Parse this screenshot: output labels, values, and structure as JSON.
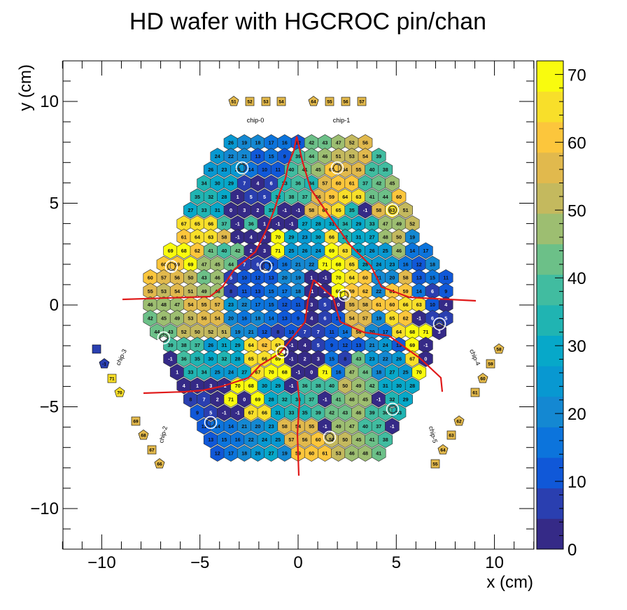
{
  "chart_data": {
    "type": "heatmap",
    "title": "HD wafer with HGCROC pin/chan",
    "xlabel": "x (cm)",
    "ylabel": "y (cm)",
    "xlim": [
      -12,
      12
    ],
    "ylim": [
      -12,
      12
    ],
    "x_ticks": [
      -10,
      -5,
      0,
      5,
      10
    ],
    "y_ticks": [
      -10,
      -5,
      0,
      5,
      10
    ],
    "z_range": [
      0,
      72
    ],
    "z_ticks": [
      0,
      10,
      20,
      30,
      40,
      50,
      60,
      70
    ],
    "palette": [
      "#352a87",
      "#2a3fb0",
      "#1058d8",
      "#0c74dc",
      "#1488d2",
      "#0898d1",
      "#07a8c9",
      "#20b4b2",
      "#41bca0",
      "#6cc088",
      "#9dbe71",
      "#c4b95e",
      "#e1b94d",
      "#fcc63c",
      "#f8df2a",
      "#f9fb0e"
    ],
    "note_chips": [
      "chip-0",
      "chip-1",
      "chip-2",
      "chip-3",
      "chip-4",
      "chip-5"
    ],
    "grid_rows": [
      [
        26,
        19,
        18,
        17,
        16,
        12,
        42,
        43,
        47,
        52,
        56
      ],
      [
        24,
        22,
        21,
        13,
        15,
        9,
        39,
        44,
        46,
        51,
        53,
        54,
        39
      ],
      [
        26,
        23,
        25,
        14,
        10,
        11,
        40,
        41,
        45,
        60,
        54,
        55,
        40,
        38
      ],
      [
        34,
        30,
        29,
        7,
        4,
        6,
        33,
        36,
        34,
        57,
        60,
        61,
        37,
        42,
        45
      ],
      [
        35,
        32,
        28,
        1,
        5,
        5,
        32,
        38,
        37,
        56,
        59,
        64,
        63,
        41,
        44,
        60
      ],
      [
        27,
        33,
        31,
        0,
        3,
        2,
        35,
        -1,
        -1,
        58,
        62,
        65,
        35,
        -1,
        58,
        63,
        51
      ],
      [
        67,
        65,
        66,
        37,
        -1,
        36,
        1,
        -1,
        -1,
        27,
        28,
        31,
        34,
        29,
        33,
        47,
        49,
        52
      ],
      [
        61,
        64,
        63,
        58,
        -1,
        4,
        0,
        70,
        29,
        23,
        30,
        66,
        32,
        31,
        27,
        48,
        50,
        19
      ],
      [
        69,
        68,
        62,
        41,
        40,
        42,
        2,
        3,
        71,
        25,
        26,
        24,
        69,
        63,
        30,
        26,
        25,
        46,
        14,
        17
      ],
      [
        60,
        59,
        69,
        47,
        45,
        44,
        7,
        6,
        10,
        16,
        21,
        22,
        71,
        68,
        65,
        28,
        24,
        23,
        16,
        12,
        18
      ],
      [
        60,
        57,
        56,
        50,
        43,
        46,
        5,
        10,
        12,
        13,
        20,
        19,
        1,
        -1,
        70,
        64,
        60,
        21,
        20,
        58,
        13,
        15,
        11
      ],
      [
        55,
        53,
        54,
        51,
        49,
        48,
        8,
        11,
        13,
        15,
        17,
        18,
        -1,
        2,
        69,
        59,
        62,
        22,
        61,
        59,
        14,
        6,
        9
      ],
      [
        46,
        48,
        47,
        54,
        55,
        57,
        23,
        22,
        17,
        15,
        12,
        11,
        3,
        5,
        0,
        55,
        58,
        61,
        60,
        66,
        63,
        10,
        4
      ],
      [
        42,
        45,
        49,
        53,
        56,
        54,
        20,
        16,
        18,
        14,
        13,
        9,
        4,
        6,
        10,
        54,
        57,
        19,
        65,
        62,
        -1,
        6,
        5
      ],
      [
        44,
        43,
        52,
        50,
        52,
        51,
        19,
        21,
        12,
        8,
        10,
        7,
        7,
        11,
        14,
        56,
        20,
        17,
        64,
        68,
        71,
        3
      ],
      [
        39,
        38,
        37,
        26,
        31,
        29,
        64,
        62,
        63,
        -1,
        4,
        5,
        9,
        12,
        13,
        21,
        24,
        13,
        69,
        -1
      ],
      [
        -1,
        36,
        35,
        30,
        32,
        28,
        65,
        66,
        69,
        -1,
        2,
        3,
        15,
        8,
        43,
        23,
        22,
        26,
        67,
        0
      ],
      [
        1,
        33,
        34,
        25,
        24,
        27,
        67,
        70,
        68,
        -1,
        0,
        71,
        16,
        47,
        44,
        18,
        27,
        25,
        70
      ],
      [
        4,
        1,
        3,
        -1,
        70,
        68,
        30,
        29,
        -1,
        36,
        38,
        40,
        50,
        49,
        42,
        31,
        30,
        28
      ],
      [
        8,
        7,
        2,
        71,
        0,
        69,
        28,
        32,
        34,
        37,
        -1,
        41,
        48,
        45,
        -1,
        32,
        29
      ],
      [
        9,
        5,
        -1,
        -1,
        67,
        66,
        31,
        33,
        35,
        39,
        42,
        43,
        46,
        39,
        36,
        33
      ],
      [
        11,
        14,
        14,
        21,
        20,
        23,
        58,
        54,
        55,
        -1,
        49,
        47,
        40,
        37,
        -1
      ],
      [
        13,
        15,
        16,
        22,
        24,
        25,
        57,
        56,
        60,
        52,
        50,
        45,
        41,
        38
      ],
      [
        12,
        17,
        18,
        26,
        27,
        19,
        59,
        60,
        61,
        53,
        46,
        48,
        41
      ]
    ],
    "boundary_pins_top": [
      "51",
      "52",
      "53",
      "54",
      "64",
      "55",
      "56",
      "57"
    ],
    "boundary_pins_left_upper": [
      "-1",
      "71",
      "70"
    ],
    "boundary_pins_left_lower": [
      "69",
      "68",
      "67",
      "66"
    ],
    "boundary_pins_right_upper": [
      "58",
      "59",
      "60",
      "61"
    ],
    "boundary_pins_right_lower": [
      "62",
      "63",
      "64",
      "55"
    ],
    "colorbar_ticks": [
      "70",
      "60",
      "50",
      "40",
      "30",
      "20",
      "10",
      "0"
    ]
  }
}
